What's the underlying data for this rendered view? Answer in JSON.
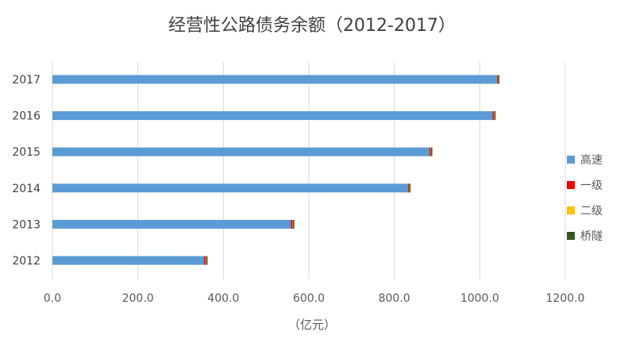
{
  "chart_data": {
    "type": "bar",
    "orientation": "horizontal",
    "stacked": true,
    "title": "经营性公路债务余额（2012-2017）",
    "xlabel": "（亿元）",
    "ylabel": "",
    "categories": [
      "2017",
      "2016",
      "2015",
      "2014",
      "2013",
      "2012"
    ],
    "series": [
      {
        "name": "高速",
        "color": "#5B9BD5",
        "values": [
          1040,
          1030,
          882,
          832,
          558,
          355
        ]
      },
      {
        "name": "一级",
        "color": "#FF0000",
        "values": [
          2,
          3,
          3,
          2,
          4,
          4
        ]
      },
      {
        "name": "二级",
        "color": "#FFC000",
        "values": [
          1,
          1,
          1,
          1,
          1,
          1
        ]
      },
      {
        "name": "桥隧",
        "color": "#375623",
        "values": [
          3,
          3,
          3,
          3,
          3,
          3
        ]
      }
    ],
    "xlim": [
      0,
      1200
    ],
    "xticks": [
      "0.0",
      "200.0",
      "400.0",
      "600.0",
      "800.0",
      "1000.0",
      "1200.0"
    ],
    "grid": true,
    "legend_position": "right"
  }
}
